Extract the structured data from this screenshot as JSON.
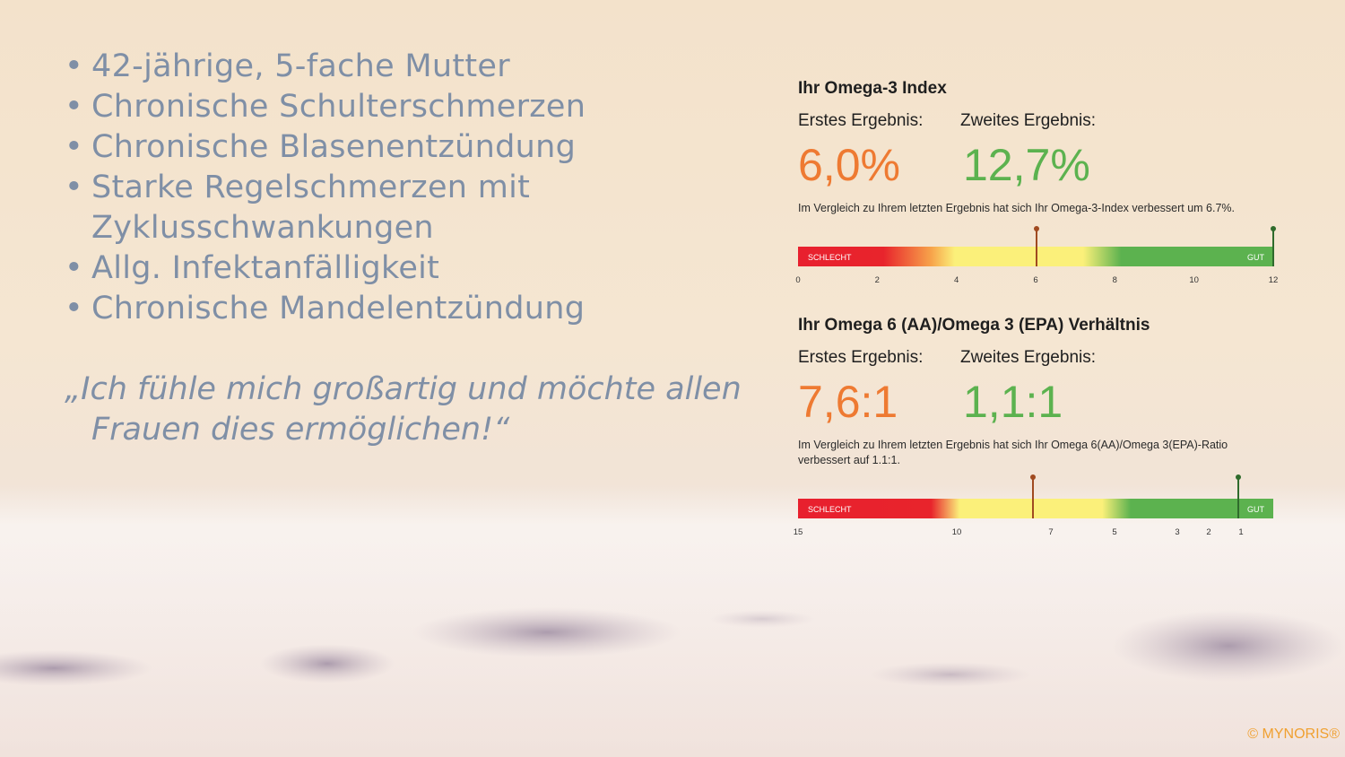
{
  "colors": {
    "text_gray": "#7f8fa6",
    "orange": "#ee7a32",
    "green": "#5cb24f",
    "copyright": "#f0a030"
  },
  "bullets": [
    "42-jährige, 5-fache Mutter",
    "Chronische Schulterschmerzen",
    "Chronische Blasenentzündung",
    "Starke Regelschmerzen mit Zyklusschwankungen",
    "Allg. Infektanfälligkeit",
    "Chronische Mandelentzündung"
  ],
  "quote": "„Ich fühle mich großartig und möchte allen Frauen dies ermöglichen!“",
  "omega3": {
    "title": "Ihr Omega-3 Index",
    "first_label": "Erstes Ergebnis:",
    "second_label": "Zweites Ergebnis:",
    "first_value": "6,0%",
    "second_value": "12,7%",
    "description": "Im Vergleich zu Ihrem letzten Ergebnis hat sich Ihr Omega-3-Index verbessert um 6.7%.",
    "bad_label": "SCHLECHT",
    "good_label": "GUT",
    "ticks": [
      "0",
      "2",
      "4",
      "6",
      "8",
      "10",
      "12"
    ],
    "scale_min": 0,
    "scale_max": 12,
    "first_marker": 6.0,
    "second_marker": 12.0
  },
  "ratio": {
    "title": "Ihr Omega 6 (AA)/Omega 3 (EPA) Verhältnis",
    "first_label": "Erstes Ergebnis:",
    "second_label": "Zweites Ergebnis:",
    "first_value": "7,6:1",
    "second_value": "1,1:1",
    "description": "Im Vergleich zu Ihrem letzten Ergebnis hat sich Ihr Omega 6(AA)/Omega 3(EPA)-Ratio verbessert auf 1.1:1.",
    "bad_label": "SCHLECHT",
    "good_label": "GUT",
    "ticks": [
      {
        "label": "15",
        "value": 15
      },
      {
        "label": "10",
        "value": 10
      },
      {
        "label": "7",
        "value": 7
      },
      {
        "label": "5",
        "value": 5
      },
      {
        "label": "3",
        "value": 3
      },
      {
        "label": "2",
        "value": 2
      },
      {
        "label": "1",
        "value": 1
      }
    ],
    "first_marker": 7.6,
    "second_marker": 1.1
  },
  "copyright": "© MYNORIS®"
}
